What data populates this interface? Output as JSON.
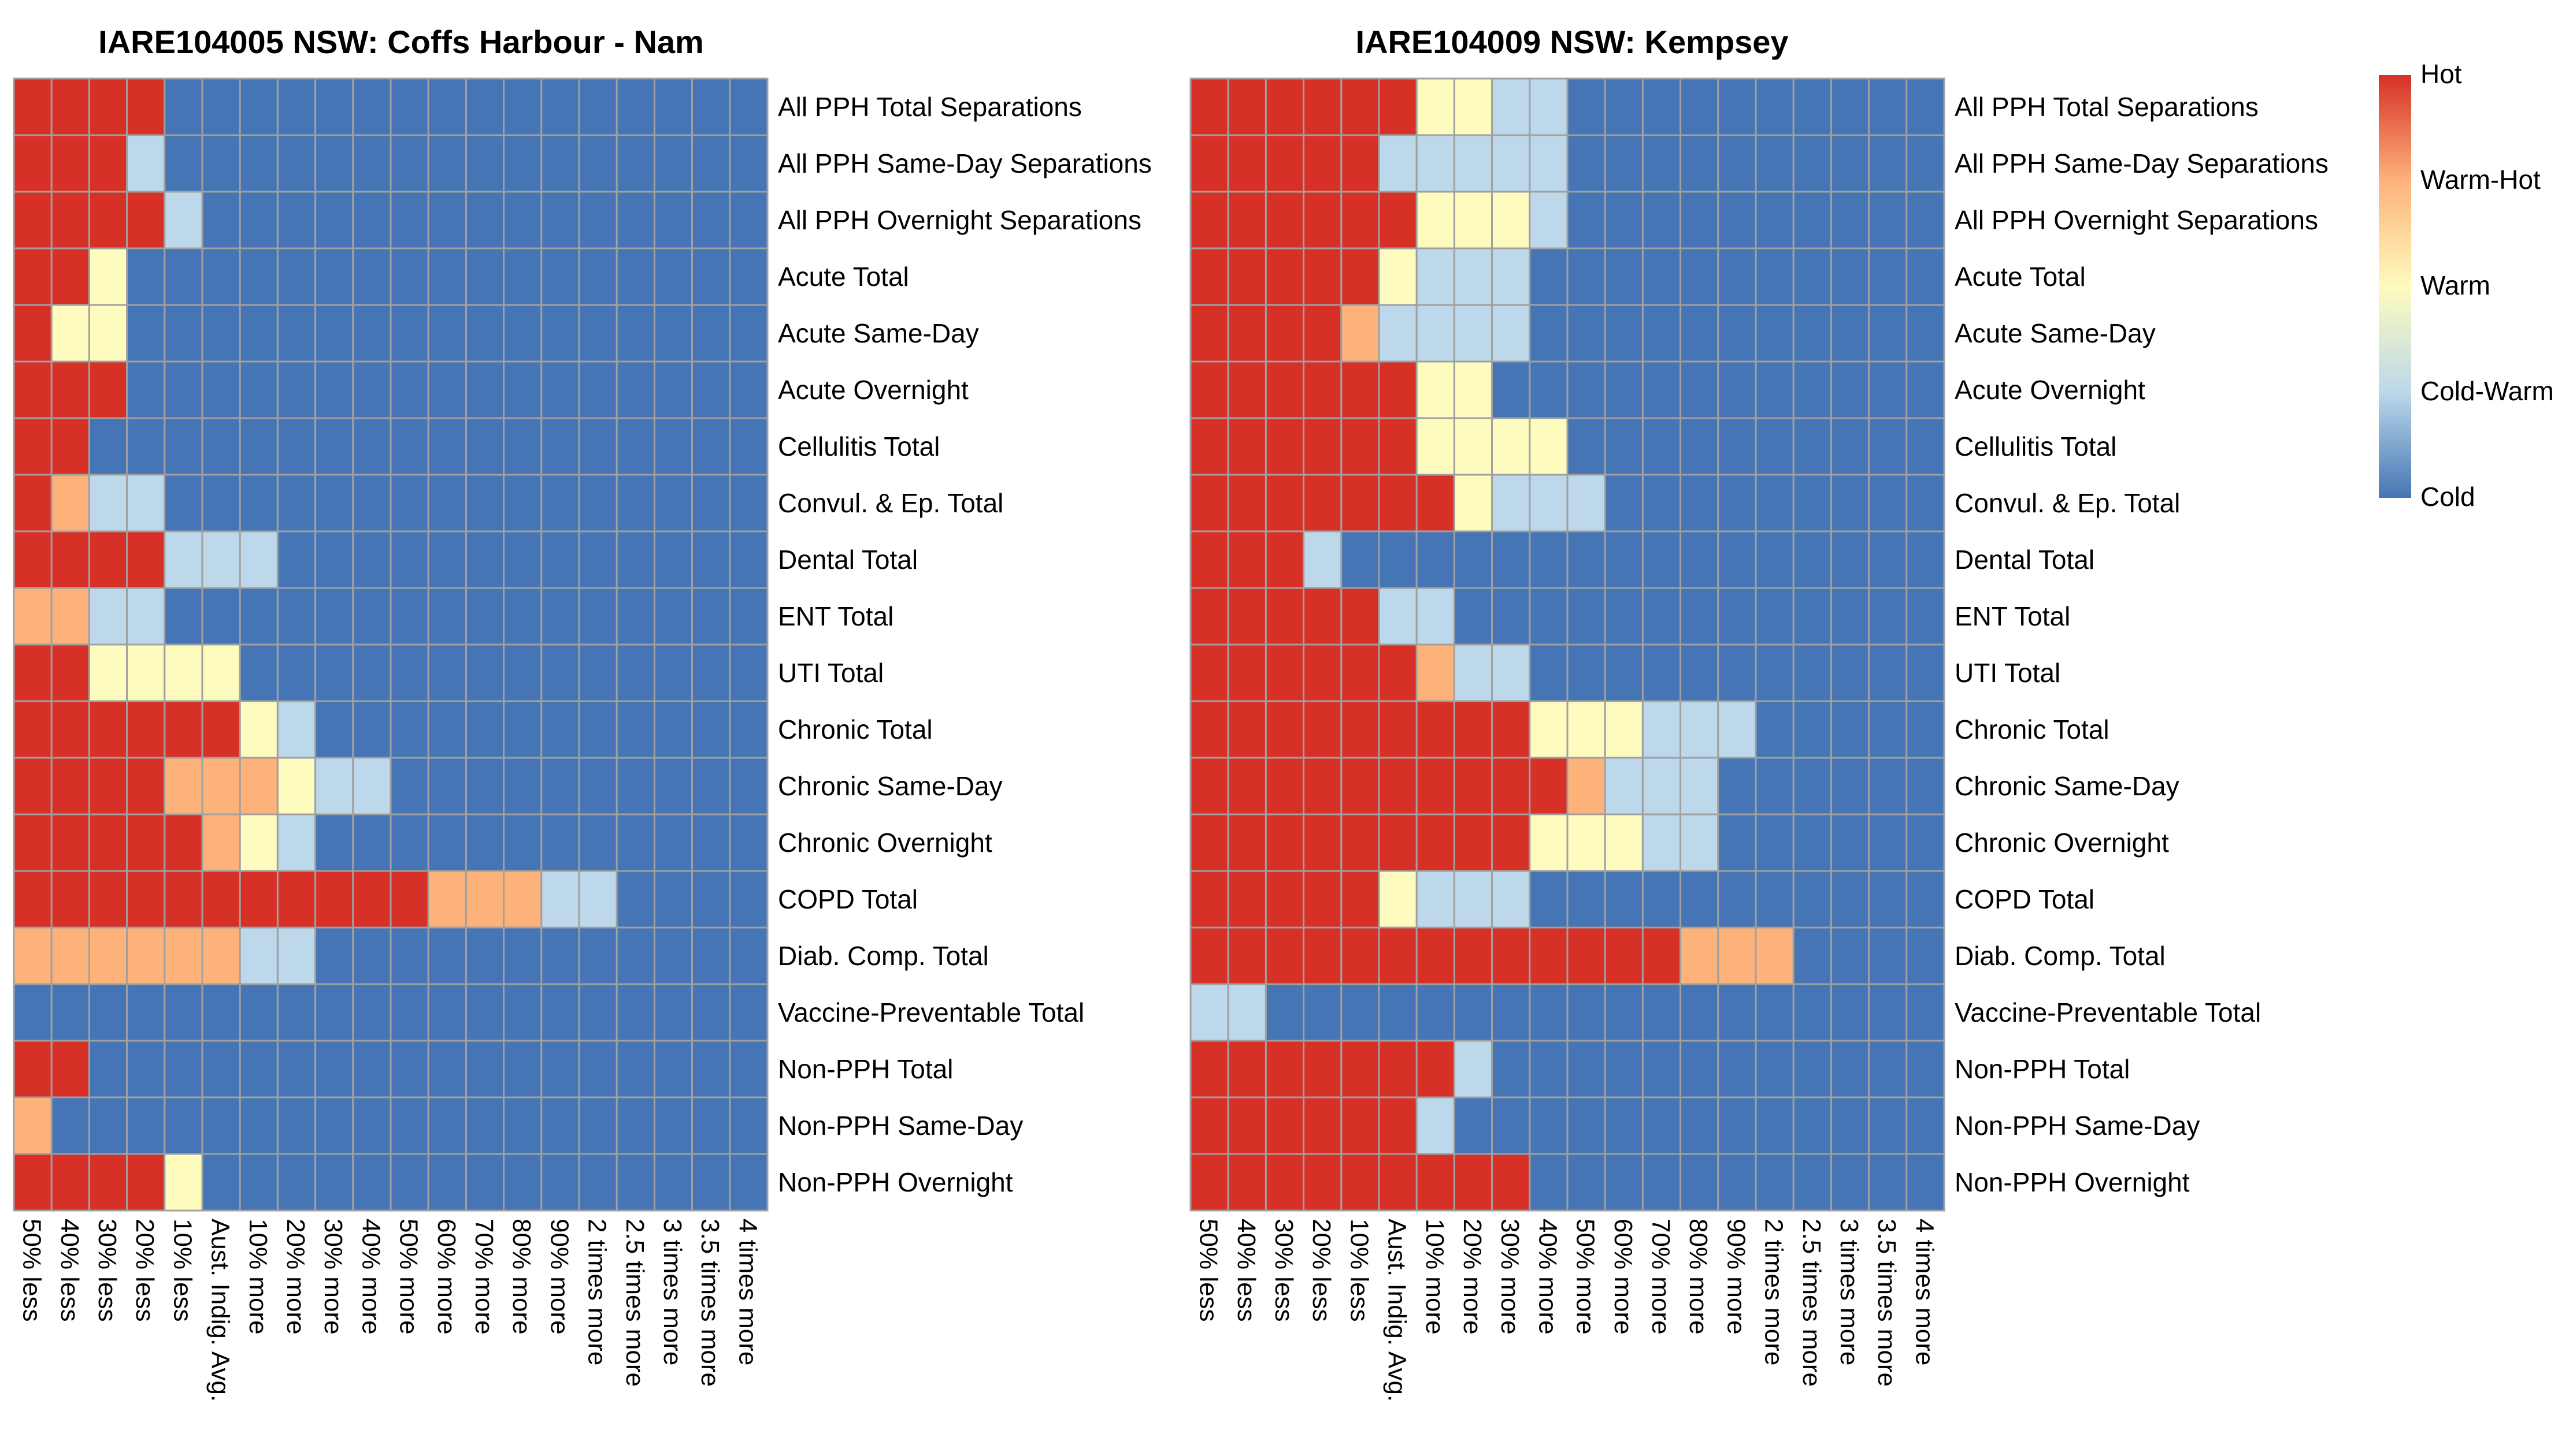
{
  "chart_data": {
    "type": "heatmap",
    "scale": {
      "levels": [
        "Hot",
        "Warm-Hot",
        "Warm",
        "Cold-Warm",
        "Cold"
      ],
      "colors": {
        "Hot": "#d73027",
        "Warm-Hot": "#fdb27a",
        "Warm": "#fefbbe",
        "Cold-Warm": "#bcd8ea",
        "Cold": "#4575b4"
      },
      "code_key": "4 = Hot, 3 = Warm-Hot, 2 = Warm, 1 = Cold-Warm, 0 = Cold"
    },
    "grid_color": "#a0a0a0",
    "rows": [
      "All PPH Total Separations",
      "All PPH Same-Day Separations",
      "All PPH Overnight Separations",
      "Acute Total",
      "Acute Same-Day",
      "Acute Overnight",
      "Cellulitis Total",
      "Convul. & Ep. Total",
      "Dental Total",
      "ENT Total",
      "UTI Total",
      "Chronic Total",
      "Chronic Same-Day",
      "Chronic Overnight",
      "COPD Total",
      "Diab. Comp. Total",
      "Vaccine-Preventable Total",
      "Non-PPH Total",
      "Non-PPH Same-Day",
      "Non-PPH Overnight"
    ],
    "columns": [
      "50% less",
      "40% less",
      "30% less",
      "20% less",
      "10% less",
      "Aust. Indig. Avg.",
      "10% more",
      "20% more",
      "30% more",
      "40% more",
      "50% more",
      "60% more",
      "70% more",
      "80% more",
      "90% more",
      "2 times more",
      "2.5 times more",
      "3 times more",
      "3.5 times more",
      "4 times more"
    ],
    "panels": [
      {
        "title": "IARE104005 NSW: Coffs Harbour - Nam",
        "values": [
          [
            4,
            4,
            4,
            4,
            0,
            0,
            0,
            0,
            0,
            0,
            0,
            0,
            0,
            0,
            0,
            0,
            0,
            0,
            0,
            0
          ],
          [
            4,
            4,
            4,
            1,
            0,
            0,
            0,
            0,
            0,
            0,
            0,
            0,
            0,
            0,
            0,
            0,
            0,
            0,
            0,
            0
          ],
          [
            4,
            4,
            4,
            4,
            1,
            0,
            0,
            0,
            0,
            0,
            0,
            0,
            0,
            0,
            0,
            0,
            0,
            0,
            0,
            0
          ],
          [
            4,
            4,
            2,
            0,
            0,
            0,
            0,
            0,
            0,
            0,
            0,
            0,
            0,
            0,
            0,
            0,
            0,
            0,
            0,
            0
          ],
          [
            4,
            2,
            2,
            0,
            0,
            0,
            0,
            0,
            0,
            0,
            0,
            0,
            0,
            0,
            0,
            0,
            0,
            0,
            0,
            0
          ],
          [
            4,
            4,
            4,
            0,
            0,
            0,
            0,
            0,
            0,
            0,
            0,
            0,
            0,
            0,
            0,
            0,
            0,
            0,
            0,
            0
          ],
          [
            4,
            4,
            0,
            0,
            0,
            0,
            0,
            0,
            0,
            0,
            0,
            0,
            0,
            0,
            0,
            0,
            0,
            0,
            0,
            0
          ],
          [
            4,
            3,
            1,
            1,
            0,
            0,
            0,
            0,
            0,
            0,
            0,
            0,
            0,
            0,
            0,
            0,
            0,
            0,
            0,
            0
          ],
          [
            4,
            4,
            4,
            4,
            1,
            1,
            1,
            0,
            0,
            0,
            0,
            0,
            0,
            0,
            0,
            0,
            0,
            0,
            0,
            0
          ],
          [
            3,
            3,
            1,
            1,
            0,
            0,
            0,
            0,
            0,
            0,
            0,
            0,
            0,
            0,
            0,
            0,
            0,
            0,
            0,
            0
          ],
          [
            4,
            4,
            2,
            2,
            2,
            2,
            0,
            0,
            0,
            0,
            0,
            0,
            0,
            0,
            0,
            0,
            0,
            0,
            0,
            0
          ],
          [
            4,
            4,
            4,
            4,
            4,
            4,
            2,
            1,
            0,
            0,
            0,
            0,
            0,
            0,
            0,
            0,
            0,
            0,
            0,
            0
          ],
          [
            4,
            4,
            4,
            4,
            3,
            3,
            3,
            2,
            1,
            1,
            0,
            0,
            0,
            0,
            0,
            0,
            0,
            0,
            0,
            0
          ],
          [
            4,
            4,
            4,
            4,
            4,
            3,
            2,
            1,
            0,
            0,
            0,
            0,
            0,
            0,
            0,
            0,
            0,
            0,
            0,
            0
          ],
          [
            4,
            4,
            4,
            4,
            4,
            4,
            4,
            4,
            4,
            4,
            4,
            3,
            3,
            3,
            1,
            1,
            0,
            0,
            0,
            0
          ],
          [
            3,
            3,
            3,
            3,
            3,
            3,
            1,
            1,
            0,
            0,
            0,
            0,
            0,
            0,
            0,
            0,
            0,
            0,
            0,
            0
          ],
          [
            0,
            0,
            0,
            0,
            0,
            0,
            0,
            0,
            0,
            0,
            0,
            0,
            0,
            0,
            0,
            0,
            0,
            0,
            0,
            0
          ],
          [
            4,
            4,
            0,
            0,
            0,
            0,
            0,
            0,
            0,
            0,
            0,
            0,
            0,
            0,
            0,
            0,
            0,
            0,
            0,
            0
          ],
          [
            3,
            0,
            0,
            0,
            0,
            0,
            0,
            0,
            0,
            0,
            0,
            0,
            0,
            0,
            0,
            0,
            0,
            0,
            0,
            0
          ],
          [
            4,
            4,
            4,
            4,
            2,
            0,
            0,
            0,
            0,
            0,
            0,
            0,
            0,
            0,
            0,
            0,
            0,
            0,
            0,
            0
          ]
        ]
      },
      {
        "title": "IARE104009 NSW: Kempsey",
        "values": [
          [
            4,
            4,
            4,
            4,
            4,
            4,
            2,
            2,
            1,
            1,
            0,
            0,
            0,
            0,
            0,
            0,
            0,
            0,
            0,
            0
          ],
          [
            4,
            4,
            4,
            4,
            4,
            1,
            1,
            1,
            1,
            1,
            0,
            0,
            0,
            0,
            0,
            0,
            0,
            0,
            0,
            0
          ],
          [
            4,
            4,
            4,
            4,
            4,
            4,
            2,
            2,
            2,
            1,
            0,
            0,
            0,
            0,
            0,
            0,
            0,
            0,
            0,
            0
          ],
          [
            4,
            4,
            4,
            4,
            4,
            2,
            1,
            1,
            1,
            0,
            0,
            0,
            0,
            0,
            0,
            0,
            0,
            0,
            0,
            0
          ],
          [
            4,
            4,
            4,
            4,
            3,
            1,
            1,
            1,
            1,
            0,
            0,
            0,
            0,
            0,
            0,
            0,
            0,
            0,
            0,
            0
          ],
          [
            4,
            4,
            4,
            4,
            4,
            4,
            2,
            2,
            0,
            0,
            0,
            0,
            0,
            0,
            0,
            0,
            0,
            0,
            0,
            0
          ],
          [
            4,
            4,
            4,
            4,
            4,
            4,
            2,
            2,
            2,
            2,
            0,
            0,
            0,
            0,
            0,
            0,
            0,
            0,
            0,
            0
          ],
          [
            4,
            4,
            4,
            4,
            4,
            4,
            4,
            2,
            1,
            1,
            1,
            0,
            0,
            0,
            0,
            0,
            0,
            0,
            0,
            0
          ],
          [
            4,
            4,
            4,
            1,
            0,
            0,
            0,
            0,
            0,
            0,
            0,
            0,
            0,
            0,
            0,
            0,
            0,
            0,
            0,
            0
          ],
          [
            4,
            4,
            4,
            4,
            4,
            1,
            1,
            0,
            0,
            0,
            0,
            0,
            0,
            0,
            0,
            0,
            0,
            0,
            0,
            0
          ],
          [
            4,
            4,
            4,
            4,
            4,
            4,
            3,
            1,
            1,
            0,
            0,
            0,
            0,
            0,
            0,
            0,
            0,
            0,
            0,
            0
          ],
          [
            4,
            4,
            4,
            4,
            4,
            4,
            4,
            4,
            4,
            2,
            2,
            2,
            1,
            1,
            1,
            0,
            0,
            0,
            0,
            0
          ],
          [
            4,
            4,
            4,
            4,
            4,
            4,
            4,
            4,
            4,
            4,
            3,
            1,
            1,
            1,
            0,
            0,
            0,
            0,
            0,
            0
          ],
          [
            4,
            4,
            4,
            4,
            4,
            4,
            4,
            4,
            4,
            2,
            2,
            2,
            1,
            1,
            0,
            0,
            0,
            0,
            0,
            0
          ],
          [
            4,
            4,
            4,
            4,
            4,
            2,
            1,
            1,
            1,
            0,
            0,
            0,
            0,
            0,
            0,
            0,
            0,
            0,
            0,
            0
          ],
          [
            4,
            4,
            4,
            4,
            4,
            4,
            4,
            4,
            4,
            4,
            4,
            4,
            4,
            3,
            3,
            3,
            0,
            0,
            0,
            0
          ],
          [
            1,
            1,
            0,
            0,
            0,
            0,
            0,
            0,
            0,
            0,
            0,
            0,
            0,
            0,
            0,
            0,
            0,
            0,
            0,
            0
          ],
          [
            4,
            4,
            4,
            4,
            4,
            4,
            4,
            1,
            0,
            0,
            0,
            0,
            0,
            0,
            0,
            0,
            0,
            0,
            0,
            0
          ],
          [
            4,
            4,
            4,
            4,
            4,
            4,
            1,
            0,
            0,
            0,
            0,
            0,
            0,
            0,
            0,
            0,
            0,
            0,
            0,
            0
          ],
          [
            4,
            4,
            4,
            4,
            4,
            4,
            4,
            4,
            4,
            0,
            0,
            0,
            0,
            0,
            0,
            0,
            0,
            0,
            0,
            0
          ]
        ]
      }
    ],
    "legend": {
      "position": "top-right",
      "labels": [
        "Hot",
        "Warm-Hot",
        "Warm",
        "Cold-Warm",
        "Cold"
      ]
    }
  }
}
